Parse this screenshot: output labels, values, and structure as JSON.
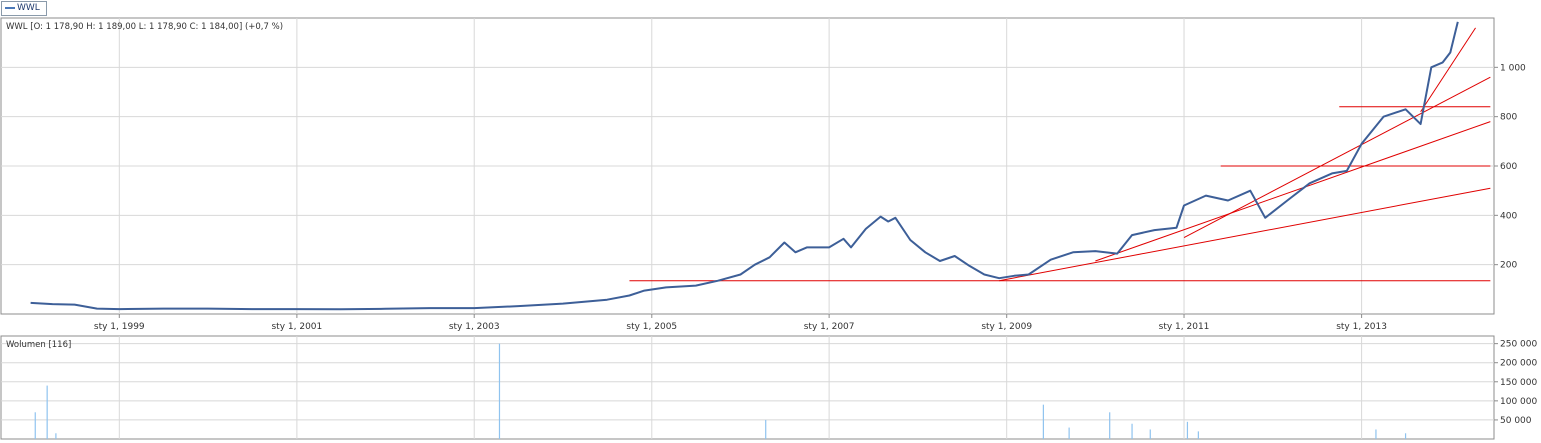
{
  "legend": {
    "series_name": "WWL"
  },
  "colors": {
    "price_line": "#3d5f98",
    "trend_line": "#e00000",
    "volume": "#8fc3ef",
    "grid": "#d8d8d8",
    "frame": "#8c8c8c",
    "text": "#333333"
  },
  "price_panel": {
    "info_text": "WWL [O: 1 178,90  H: 1 189,00  L: 1 178,90  C: 1 184,00] (+0,7 %)"
  },
  "volume_panel": {
    "label": "Wolumen [116]"
  },
  "chart_data": [
    {
      "type": "line",
      "title": "WWL [O: 1 178,90  H: 1 189,00  L: 1 178,90  C: 1 184,00] (+0,7 %)",
      "x_ticks": [
        "sty 1, 1999",
        "sty 1, 2001",
        "sty 1, 2003",
        "sty 1, 2005",
        "sty 1, 2007",
        "sty 1, 2009",
        "sty 1, 2011",
        "sty 1, 2013"
      ],
      "y_ticks": [
        "200",
        "400",
        "600",
        "800",
        "1 000"
      ],
      "ylim": [
        0,
        1200
      ],
      "xlim": [
        "1997-09-01",
        "2014-06-30"
      ],
      "grid": true,
      "series": [
        {
          "name": "WWL",
          "points": [
            [
              "1998-01-01",
              45
            ],
            [
              "1998-04-01",
              40
            ],
            [
              "1998-07-01",
              38
            ],
            [
              "1998-10-01",
              22
            ],
            [
              "1999-01-01",
              20
            ],
            [
              "1999-07-01",
              22
            ],
            [
              "2000-01-01",
              22
            ],
            [
              "2000-07-01",
              20
            ],
            [
              "2001-01-01",
              20
            ],
            [
              "2001-07-01",
              19
            ],
            [
              "2002-01-01",
              21
            ],
            [
              "2002-07-01",
              24
            ],
            [
              "2003-01-01",
              24
            ],
            [
              "2003-07-01",
              32
            ],
            [
              "2004-01-01",
              42
            ],
            [
              "2004-07-01",
              58
            ],
            [
              "2004-10-01",
              75
            ],
            [
              "2004-12-01",
              95
            ],
            [
              "2005-03-01",
              108
            ],
            [
              "2005-07-01",
              115
            ],
            [
              "2005-10-01",
              135
            ],
            [
              "2006-01-01",
              160
            ],
            [
              "2006-03-01",
              200
            ],
            [
              "2006-05-01",
              230
            ],
            [
              "2006-07-01",
              290
            ],
            [
              "2006-08-15",
              250
            ],
            [
              "2006-10-01",
              270
            ],
            [
              "2007-01-01",
              270
            ],
            [
              "2007-03-01",
              305
            ],
            [
              "2007-04-01",
              270
            ],
            [
              "2007-06-01",
              345
            ],
            [
              "2007-08-01",
              395
            ],
            [
              "2007-09-01",
              375
            ],
            [
              "2007-10-01",
              390
            ],
            [
              "2007-12-01",
              300
            ],
            [
              "2008-02-01",
              250
            ],
            [
              "2008-04-01",
              215
            ],
            [
              "2008-06-01",
              235
            ],
            [
              "2008-08-01",
              195
            ],
            [
              "2008-10-01",
              160
            ],
            [
              "2008-12-01",
              145
            ],
            [
              "2009-02-01",
              155
            ],
            [
              "2009-04-01",
              160
            ],
            [
              "2009-07-01",
              220
            ],
            [
              "2009-10-01",
              250
            ],
            [
              "2010-01-01",
              255
            ],
            [
              "2010-04-01",
              245
            ],
            [
              "2010-06-01",
              320
            ],
            [
              "2010-09-01",
              340
            ],
            [
              "2010-12-01",
              350
            ],
            [
              "2011-01-01",
              440
            ],
            [
              "2011-04-01",
              480
            ],
            [
              "2011-07-01",
              460
            ],
            [
              "2011-10-01",
              500
            ],
            [
              "2011-12-01",
              390
            ],
            [
              "2012-03-01",
              460
            ],
            [
              "2012-06-01",
              530
            ],
            [
              "2012-09-01",
              570
            ],
            [
              "2012-11-01",
              580
            ],
            [
              "2013-01-01",
              690
            ],
            [
              "2013-04-01",
              800
            ],
            [
              "2013-07-01",
              830
            ],
            [
              "2013-09-01",
              770
            ],
            [
              "2013-10-15",
              1000
            ],
            [
              "2013-12-01",
              1020
            ],
            [
              "2014-01-01",
              1060
            ],
            [
              "2014-02-01",
              1184
            ]
          ]
        }
      ],
      "trend_lines": [
        {
          "from": [
            "2004-10-01",
            135
          ],
          "to": [
            "2014-06-15",
            135
          ]
        },
        {
          "from": [
            "2008-12-01",
            135
          ],
          "to": [
            "2014-06-15",
            510
          ]
        },
        {
          "from": [
            "2010-01-01",
            215
          ],
          "to": [
            "2014-06-15",
            780
          ]
        },
        {
          "from": [
            "2011-01-01",
            310
          ],
          "to": [
            "2014-06-15",
            960
          ]
        },
        {
          "from": [
            "2011-06-01",
            600
          ],
          "to": [
            "2014-06-15",
            600
          ]
        },
        {
          "from": [
            "2012-10-01",
            840
          ],
          "to": [
            "2014-06-15",
            840
          ]
        },
        {
          "from": [
            "2013-09-01",
            820
          ],
          "to": [
            "2014-04-15",
            1160
          ]
        }
      ]
    },
    {
      "type": "bar",
      "title": "Wolumen [116]",
      "y_ticks": [
        "50 000",
        "100 000",
        "150 000",
        "200 000",
        "250 000"
      ],
      "ylim": [
        0,
        270000
      ],
      "spikes": [
        [
          "1998-01-20",
          70000
        ],
        [
          "1998-03-10",
          140000
        ],
        [
          "1998-04-15",
          15000
        ],
        [
          "2003-04-15",
          250000
        ],
        [
          "2006-04-15",
          50000
        ],
        [
          "2009-06-01",
          90000
        ],
        [
          "2009-09-15",
          30000
        ],
        [
          "2010-03-01",
          70000
        ],
        [
          "2010-06-01",
          40000
        ],
        [
          "2010-08-15",
          25000
        ],
        [
          "2011-01-15",
          45000
        ],
        [
          "2011-03-01",
          20000
        ],
        [
          "2013-03-01",
          25000
        ],
        [
          "2013-07-01",
          15000
        ]
      ]
    }
  ]
}
